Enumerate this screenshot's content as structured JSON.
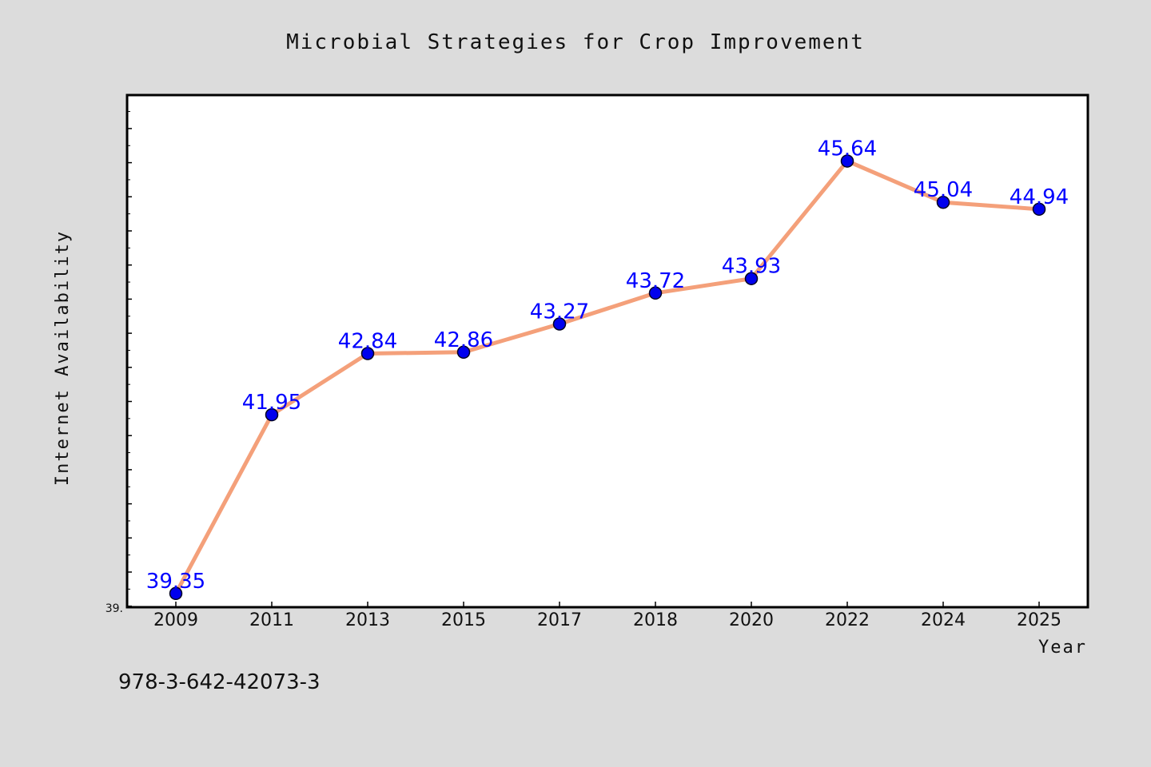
{
  "chart_data": {
    "type": "line",
    "title": "Microbial Strategies for Crop Improvement",
    "xlabel": "Year",
    "ylabel": "Internet Availability",
    "categories": [
      "2009",
      "2011",
      "2013",
      "2015",
      "2017",
      "2018",
      "2020",
      "2022",
      "2024",
      "2025"
    ],
    "series": [
      {
        "values": [
          39.35,
          41.95,
          42.84,
          42.86,
          43.27,
          43.72,
          43.93,
          45.64,
          45.04,
          44.94
        ],
        "data_labels": [
          "39.35",
          "41.95",
          "42.84",
          "42.86",
          "43.27",
          "43.72",
          "43.93",
          "45.64",
          "45.04",
          "44.94"
        ]
      }
    ],
    "ylim": [
      39.15,
      46.6
    ],
    "y_tick_labels": [
      "39."
    ],
    "grid": false,
    "line_color": "#f4a07a",
    "marker_color": "#0000ee",
    "label_color": "#0000ff",
    "plot_background": "#ffffff",
    "figure_background": "#dcdcdc"
  },
  "footer": {
    "isbn": "978-3-642-42073-3"
  }
}
